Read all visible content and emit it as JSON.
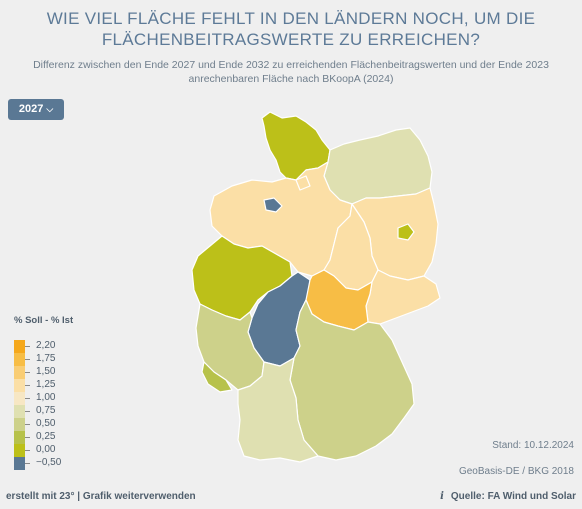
{
  "header": {
    "title": "WIE VIEL FLÄCHE FEHLT IN DEN LÄNDERN NOCH, UM DIE FLÄCHENBEITRAGSWERTE ZU ERREICHEN?",
    "subtitle": "Differenz zwischen den Ende 2027 und Ende 2032 zu erreichenden Flächenbeitragswerten und der Ende 2023 anrechenbaren Fläche nach BKoopA (2024)"
  },
  "year_select": {
    "label": "2027",
    "icon": "chevron-down-icon"
  },
  "legend": {
    "title": "% Soll - % Ist",
    "items": [
      {
        "label": "2,20",
        "color": "#f5a81c"
      },
      {
        "label": "1,75",
        "color": "#f7bd45"
      },
      {
        "label": "1,50",
        "color": "#f9cd74"
      },
      {
        "label": "1,25",
        "color": "#fbdfa6"
      },
      {
        "label": "1,00",
        "color": "#f7e7c4"
      },
      {
        "label": "0,75",
        "color": "#dfe0b1"
      },
      {
        "label": "0,50",
        "color": "#cdd18a"
      },
      {
        "label": "0,25",
        "color": "#b7c24b"
      },
      {
        "label": "0,00",
        "color": "#bcc019"
      },
      {
        "label": "−0,50",
        "color": "#5a7894"
      }
    ]
  },
  "map_data": {
    "states": [
      {
        "name": "Schleswig-Holstein",
        "fill": "#bcc019"
      },
      {
        "name": "Mecklenburg-Vorpommern",
        "fill": "#dfe0b1"
      },
      {
        "name": "Niedersachsen",
        "fill": "#fbdfa6"
      },
      {
        "name": "Bremen",
        "fill": "#5a7894"
      },
      {
        "name": "Hamburg",
        "fill": "#fbdfa6"
      },
      {
        "name": "Brandenburg",
        "fill": "#fbdfa6"
      },
      {
        "name": "Berlin",
        "fill": "#bcc019"
      },
      {
        "name": "Sachsen-Anhalt",
        "fill": "#fbdfa6"
      },
      {
        "name": "Sachsen",
        "fill": "#fbdfa6"
      },
      {
        "name": "Nordrhein-Westfalen",
        "fill": "#bcc019"
      },
      {
        "name": "Hessen",
        "fill": "#5a7894"
      },
      {
        "name": "Thüringen",
        "fill": "#f7bd45"
      },
      {
        "name": "Rheinland-Pfalz",
        "fill": "#cdd18a"
      },
      {
        "name": "Saarland",
        "fill": "#b7c24b"
      },
      {
        "name": "Bayern",
        "fill": "#cdd18a"
      },
      {
        "name": "Baden-Württemberg",
        "fill": "#dfe0b1"
      }
    ]
  },
  "meta": {
    "stand": "Stand: 10.12.2024",
    "geobasis": "GeoBasis-DE / BKG 2018"
  },
  "footer": {
    "created_with": "erstellt mit 23° | ",
    "grafik_link": "Grafik  weiterverwenden",
    "source": "Quelle: FA Wind und Solar"
  }
}
